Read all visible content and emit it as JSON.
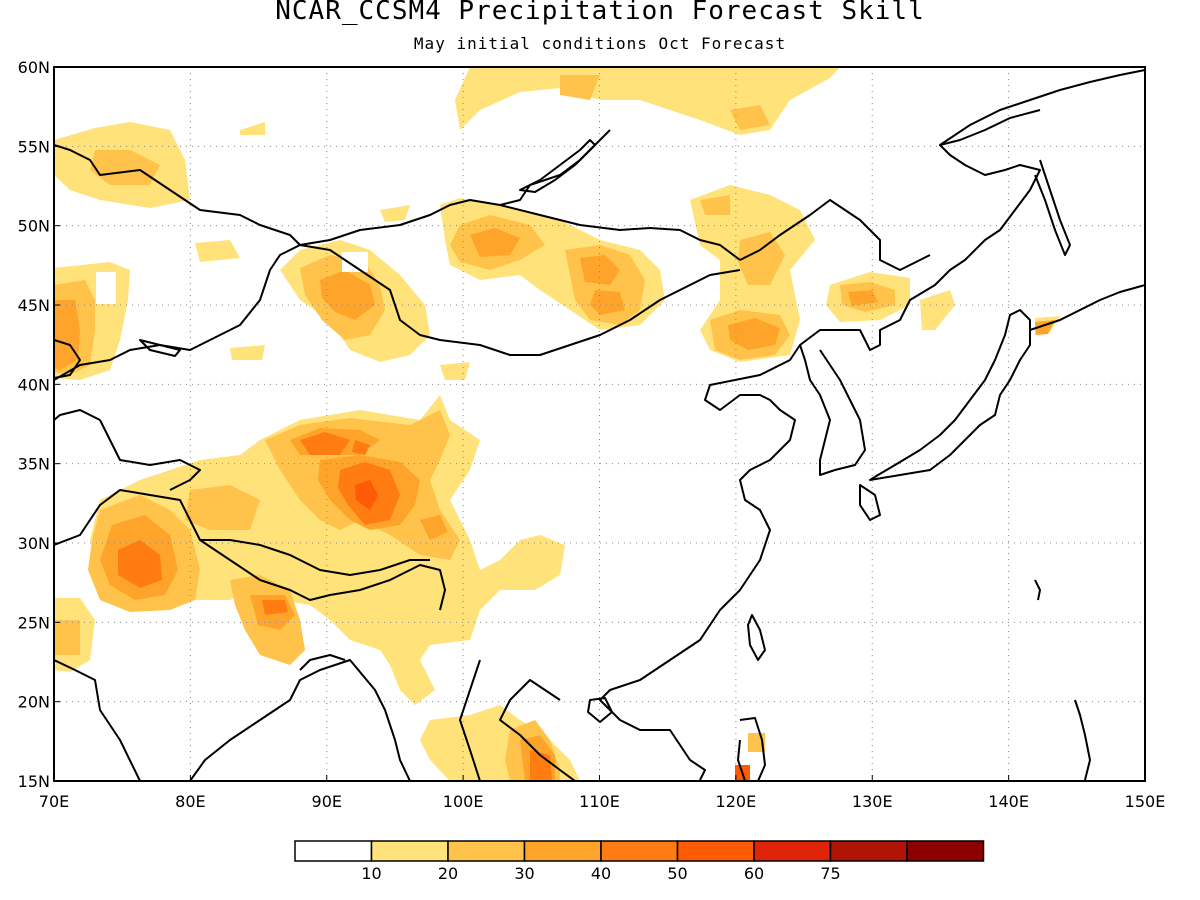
{
  "title": "NCAR_CCSM4 Precipitation Forecast Skill",
  "subtitle": "May initial conditions  Oct Forecast",
  "map": {
    "lon_range": [
      70,
      150
    ],
    "lat_range": [
      15,
      60
    ],
    "lon_ticks": [
      "70E",
      "80E",
      "90E",
      "100E",
      "110E",
      "120E",
      "130E",
      "140E",
      "150E"
    ],
    "lat_ticks": [
      "15N",
      "20N",
      "25N",
      "30N",
      "35N",
      "40N",
      "45N",
      "50N",
      "55N",
      "60N"
    ],
    "grid": "dotted",
    "coastlines": true
  },
  "colorbar": {
    "levels": [
      "10",
      "20",
      "30",
      "40",
      "50",
      "60",
      "75"
    ],
    "colors": [
      "#ffffff",
      "#ffe27a",
      "#ffc24a",
      "#ffa42a",
      "#ff7c12",
      "#ff5a06",
      "#e0240a",
      "#b01404",
      "#8c0000"
    ]
  },
  "chart_data": {
    "type": "heatmap",
    "title": "NCAR_CCSM4 Precipitation Forecast Skill",
    "subtitle": "May initial conditions  Oct Forecast",
    "x_axis": "longitude (degrees E), 70 to 150",
    "y_axis": "latitude (degrees N), 15 to 60",
    "value_bins": [
      10,
      20,
      30,
      40,
      50,
      60,
      75
    ],
    "regions": [
      {
        "lon": 76,
        "lat": 28,
        "level": 40
      },
      {
        "lon": 92,
        "lat": 33,
        "level": 50
      },
      {
        "lon": 89,
        "lat": 36,
        "level": 40
      },
      {
        "lon": 87,
        "lat": 26,
        "level": 40
      },
      {
        "lon": 92,
        "lat": 46,
        "level": 30
      },
      {
        "lon": 101,
        "lat": 48,
        "level": 30
      },
      {
        "lon": 108,
        "lat": 47,
        "level": 30
      },
      {
        "lon": 109,
        "lat": 45,
        "level": 30
      },
      {
        "lon": 121,
        "lat": 43,
        "level": 30
      },
      {
        "lon": 130,
        "lat": 45,
        "level": 20
      },
      {
        "lon": 72,
        "lat": 44,
        "level": 30
      },
      {
        "lon": 105,
        "lat": 16,
        "level": 40
      },
      {
        "lon": 120,
        "lat": 15.5,
        "level": 50
      },
      {
        "lon": 121.5,
        "lat": 17.5,
        "level": 30
      }
    ]
  }
}
